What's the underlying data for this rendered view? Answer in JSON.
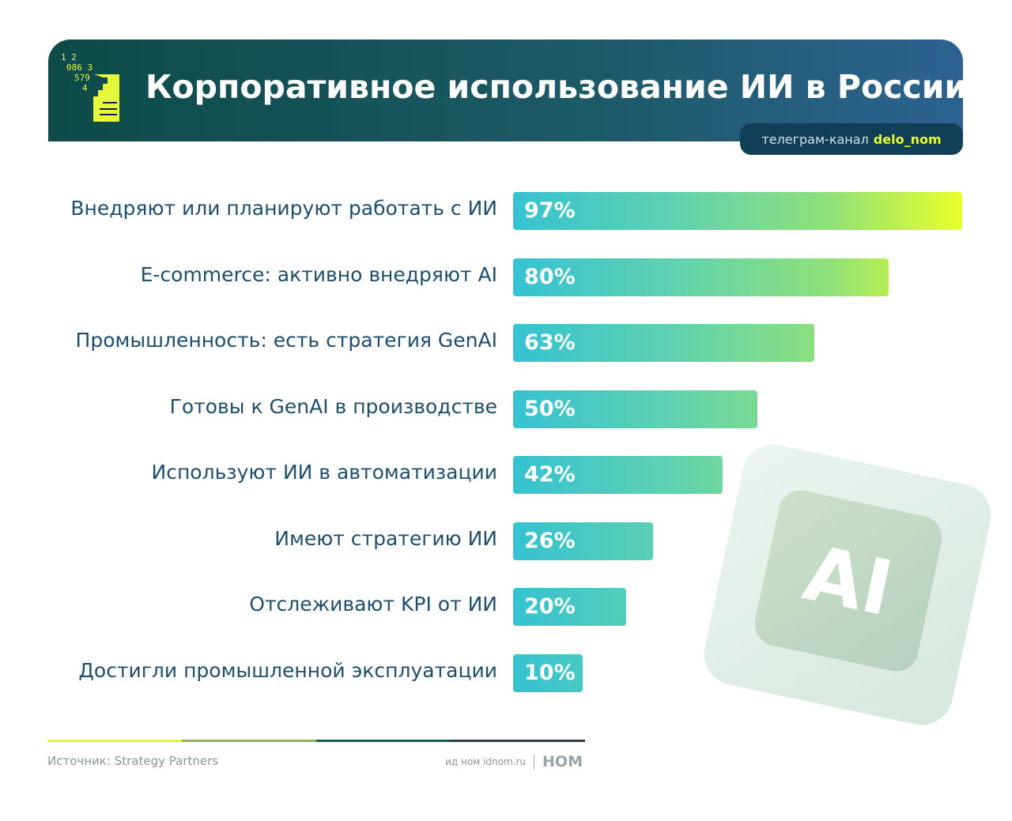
{
  "header": {
    "title": "Корпоративное использование ИИ в России",
    "logo_digits": [
      "1 2",
      "086 3",
      "579",
      "4"
    ],
    "telegram_prefix": "телеграм-канал",
    "telegram_channel": "delo_nom"
  },
  "chart_data": {
    "type": "bar",
    "orientation": "horizontal",
    "title": "Корпоративное использование ИИ в России",
    "categories": [
      "Внедряют или планируют работать с ИИ",
      "E-commerce: активно внедряют AI",
      "Промышленность: есть стратегия GenAI",
      "Готовы к GenAI в производстве",
      "Используют ИИ в автоматизации",
      "Имеют стратегию ИИ",
      "Отслеживают KPI от ИИ",
      "Достигли промышленной эксплуатации"
    ],
    "values": [
      97,
      80,
      63,
      50,
      42,
      26,
      20,
      10
    ],
    "labels": [
      "97%",
      "80%",
      "63%",
      "50%",
      "42%",
      "26%",
      "20%",
      "10%"
    ],
    "unit": "%"
  },
  "decor": {
    "chip_text": "AI"
  },
  "footer": {
    "source": "Источник: Strategy Partners",
    "site": "ид ном idnom.ru",
    "brand": "НОМ"
  }
}
